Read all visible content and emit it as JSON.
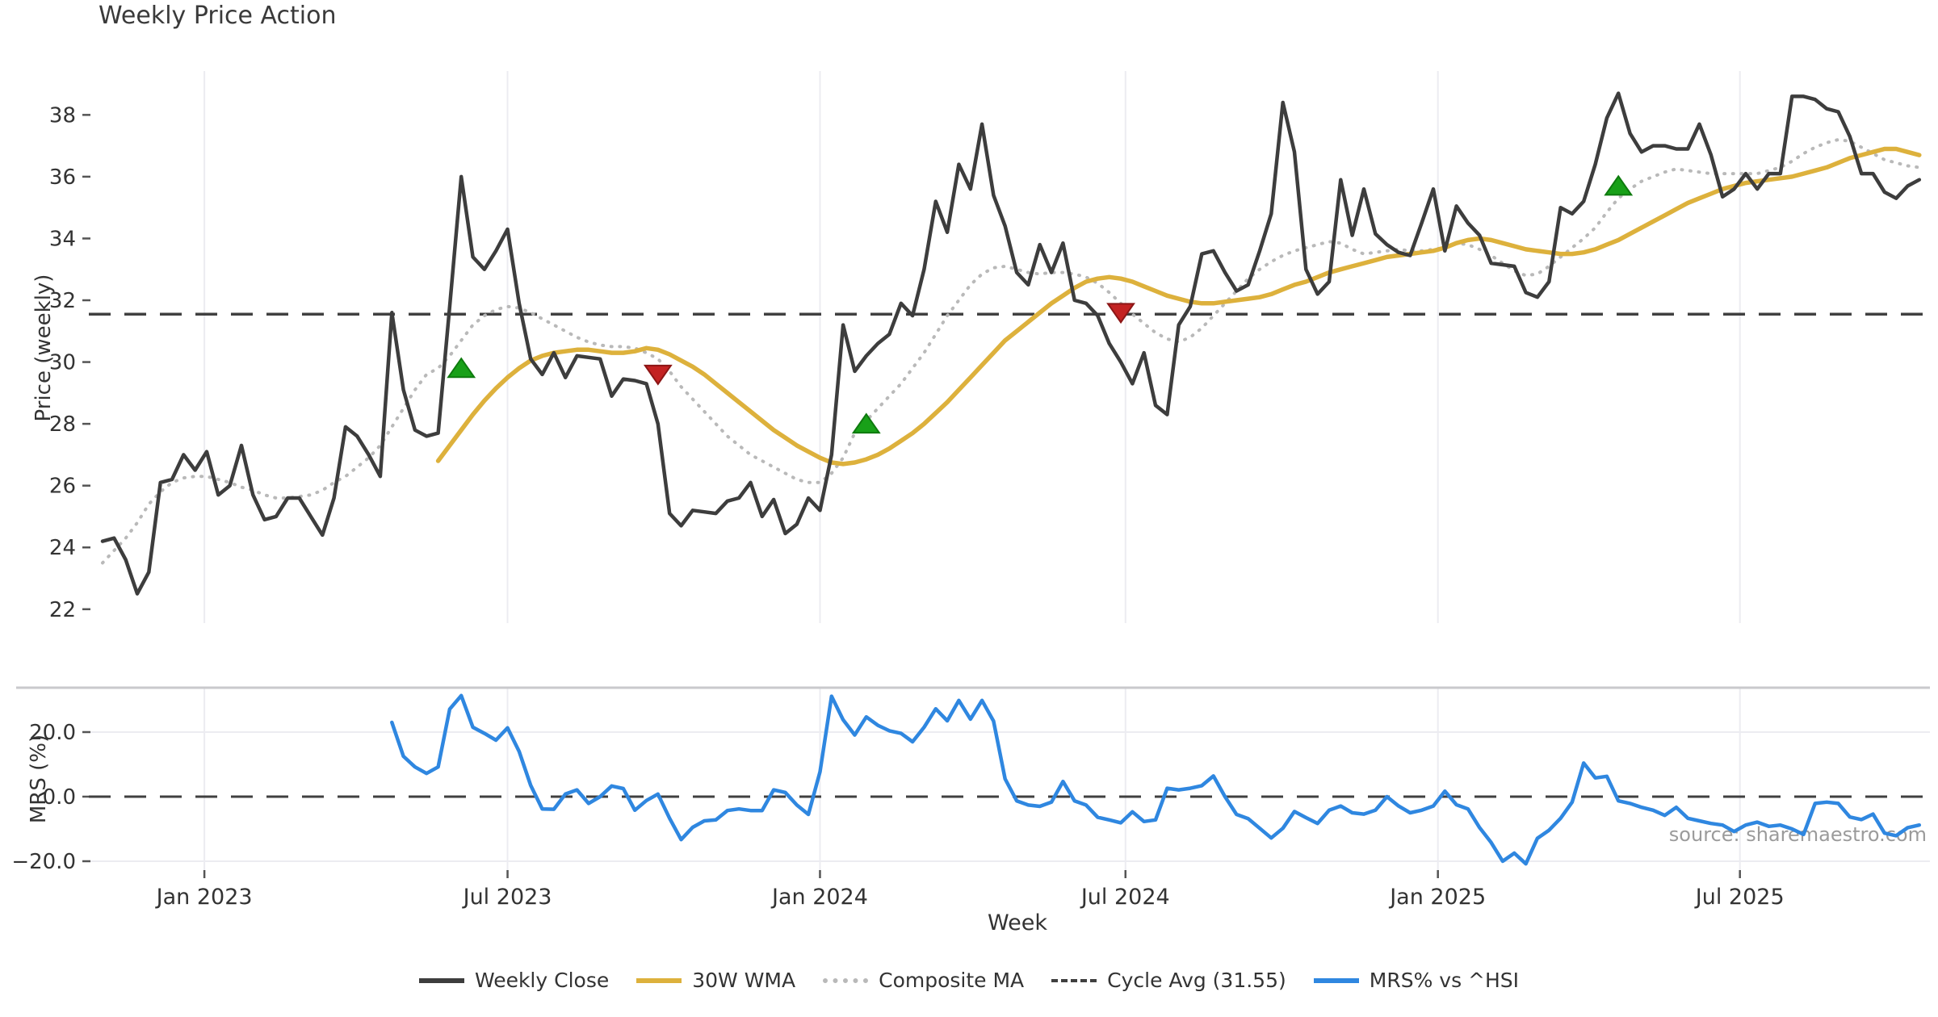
{
  "page": {
    "title": "Weekly Price Action",
    "source_text": "source: sharemaestro.com",
    "background": "#ffffff"
  },
  "chart_data": {
    "type": "line",
    "title": "Weekly Price Action",
    "x_axis": {
      "label": "Week",
      "total_weeks": 158,
      "ticks": [
        {
          "label": "Jan 2023",
          "week": 8.8
        },
        {
          "label": "Jul 2023",
          "week": 35.0
        },
        {
          "label": "Jan 2024",
          "week": 62.0
        },
        {
          "label": "Jul 2024",
          "week": 88.4
        },
        {
          "label": "Jan 2025",
          "week": 115.4
        },
        {
          "label": "Jul 2025",
          "week": 141.5
        }
      ]
    },
    "panels": [
      {
        "id": "price",
        "ylabel": "Price (weekly)",
        "ylim": [
          21.55,
          39.42
        ],
        "yticks": [
          22,
          24,
          26,
          28,
          30,
          32,
          34,
          36,
          38
        ],
        "grid": "vertical-only",
        "series": [
          {
            "name": "Weekly Close",
            "color": "#3d3d3d",
            "style": "solid",
            "width": 4.5,
            "start_week": 0,
            "values": [
              24.2,
              24.3,
              23.6,
              22.5,
              23.2,
              26.1,
              26.2,
              27.0,
              26.5,
              27.1,
              25.7,
              26.0,
              27.3,
              25.7,
              24.9,
              25.0,
              25.6,
              25.6,
              25.0,
              24.4,
              25.6,
              27.9,
              27.6,
              27.0,
              26.3,
              31.6,
              29.1,
              27.8,
              27.6,
              27.7,
              31.8,
              36.0,
              33.4,
              33.0,
              33.6,
              34.3,
              31.9,
              30.1,
              29.6,
              30.3,
              29.5,
              30.2,
              30.15,
              30.1,
              28.9,
              29.45,
              29.4,
              29.3,
              28.0,
              25.1,
              24.7,
              25.2,
              25.15,
              25.1,
              25.5,
              25.6,
              26.1,
              25.0,
              25.55,
              24.45,
              24.75,
              25.6,
              25.2,
              27.0,
              31.2,
              29.7,
              30.2,
              30.6,
              30.9,
              31.9,
              31.5,
              33.0,
              35.2,
              34.2,
              36.4,
              35.6,
              37.7,
              35.4,
              34.4,
              32.9,
              32.5,
              33.8,
              32.9,
              33.85,
              32.0,
              31.9,
              31.5,
              30.6,
              30.0,
              29.3,
              30.3,
              28.6,
              28.3,
              31.2,
              31.8,
              33.5,
              33.6,
              32.9,
              32.3,
              32.5,
              33.6,
              34.8,
              38.4,
              36.8,
              33.0,
              32.2,
              32.6,
              35.9,
              34.1,
              35.6,
              34.15,
              33.8,
              33.55,
              33.45,
              34.5,
              35.6,
              33.6,
              35.05,
              34.5,
              34.1,
              33.2,
              33.15,
              33.1,
              32.25,
              32.1,
              32.6,
              35.0,
              34.8,
              35.2,
              36.4,
              37.9,
              38.7,
              37.4,
              36.8,
              37.0,
              37.0,
              36.9,
              36.9,
              37.7,
              36.7,
              35.35,
              35.6,
              36.1,
              35.6,
              36.1,
              36.1,
              38.6,
              38.6,
              38.5,
              38.2,
              38.1,
              37.3,
              36.1,
              36.1,
              35.5,
              35.3,
              35.7,
              35.9
            ]
          },
          {
            "name": "30W WMA",
            "color": "#ddb13c",
            "style": "solid",
            "width": 5.5,
            "start_week": 29,
            "values": [
              26.8,
              27.3,
              27.8,
              28.3,
              28.75,
              29.15,
              29.5,
              29.8,
              30.05,
              30.2,
              30.3,
              30.35,
              30.4,
              30.4,
              30.35,
              30.3,
              30.3,
              30.35,
              30.45,
              30.4,
              30.25,
              30.05,
              29.85,
              29.6,
              29.3,
              29.0,
              28.7,
              28.4,
              28.1,
              27.8,
              27.55,
              27.3,
              27.1,
              26.9,
              26.75,
              26.7,
              26.75,
              26.85,
              27.0,
              27.2,
              27.45,
              27.7,
              28.0,
              28.35,
              28.7,
              29.1,
              29.5,
              29.9,
              30.3,
              30.7,
              31.0,
              31.3,
              31.6,
              31.9,
              32.15,
              32.4,
              32.6,
              32.7,
              32.75,
              32.7,
              32.6,
              32.45,
              32.3,
              32.15,
              32.05,
              31.95,
              31.9,
              31.9,
              31.95,
              32.0,
              32.05,
              32.1,
              32.2,
              32.35,
              32.5,
              32.6,
              32.75,
              32.9,
              33.0,
              33.1,
              33.2,
              33.3,
              33.4,
              33.45,
              33.5,
              33.55,
              33.6,
              33.7,
              33.85,
              33.95,
              34.0,
              33.95,
              33.85,
              33.75,
              33.65,
              33.6,
              33.55,
              33.5,
              33.5,
              33.55,
              33.65,
              33.8,
              33.95,
              34.15,
              34.35,
              34.55,
              34.75,
              34.95,
              35.15,
              35.3,
              35.45,
              35.6,
              35.7,
              35.8,
              35.85,
              35.9,
              35.95,
              36.0,
              36.1,
              36.2,
              36.3,
              36.45,
              36.6,
              36.7,
              36.8,
              36.9,
              36.9,
              36.8,
              36.7
            ]
          },
          {
            "name": "Composite MA",
            "color": "#b9b9b9",
            "style": "dotted",
            "width": 4,
            "start_week": 0,
            "values": [
              23.5,
              23.9,
              24.3,
              24.8,
              25.4,
              25.8,
              26.1,
              26.25,
              26.3,
              26.3,
              26.2,
              26.1,
              25.95,
              25.85,
              25.7,
              25.6,
              25.6,
              25.65,
              25.7,
              25.85,
              26.1,
              26.3,
              26.6,
              26.9,
              27.3,
              27.9,
              28.5,
              29.1,
              29.6,
              29.8,
              30.2,
              30.7,
              31.2,
              31.5,
              31.7,
              31.8,
              31.75,
              31.6,
              31.4,
              31.2,
              31.0,
              30.8,
              30.65,
              30.55,
              30.5,
              30.5,
              30.45,
              30.3,
              30.1,
              29.7,
              29.2,
              28.8,
              28.4,
              28.0,
              27.6,
              27.3,
              27.0,
              26.8,
              26.6,
              26.4,
              26.2,
              26.1,
              26.1,
              26.4,
              26.9,
              27.7,
              28.1,
              28.5,
              28.9,
              29.3,
              29.8,
              30.3,
              30.9,
              31.5,
              32.0,
              32.5,
              32.85,
              33.05,
              33.1,
              33.0,
              32.9,
              32.85,
              32.9,
              32.9,
              32.85,
              32.75,
              32.55,
              32.25,
              31.9,
              31.55,
              31.25,
              30.95,
              30.75,
              30.65,
              30.8,
              31.1,
              31.5,
              31.9,
              32.3,
              32.7,
              33.0,
              33.25,
              33.45,
              33.6,
              33.7,
              33.8,
              33.9,
              33.85,
              33.65,
              33.5,
              33.55,
              33.6,
              33.65,
              33.6,
              33.6,
              33.65,
              33.7,
              33.85,
              33.8,
              33.65,
              33.45,
              33.2,
              32.95,
              32.8,
              32.85,
              33.1,
              33.4,
              33.7,
              34.0,
              34.35,
              34.85,
              35.3,
              35.6,
              35.85,
              36.0,
              36.15,
              36.25,
              36.2,
              36.15,
              36.1,
              36.1,
              36.1,
              36.1,
              36.1,
              36.2,
              36.3,
              36.5,
              36.75,
              36.95,
              37.1,
              37.2,
              37.15,
              36.95,
              36.75,
              36.55,
              36.45,
              36.35,
              36.3
            ]
          },
          {
            "name": "Cycle Avg (31.55)",
            "color": "#404040",
            "style": "dashed",
            "width": 3.5,
            "const_value": 31.55
          }
        ],
        "markers": {
          "buy_color": "#18a018",
          "buy_edge": "#0e7a0e",
          "sell_color": "#c32222",
          "sell_edge": "#8c1616",
          "buy": [
            {
              "week": 31,
              "price": 29.8
            },
            {
              "week": 66,
              "price": 28.0
            },
            {
              "week": 131,
              "price": 35.7
            }
          ],
          "sell": [
            {
              "week": 48,
              "price": 29.6
            },
            {
              "week": 88,
              "price": 31.6
            }
          ]
        }
      },
      {
        "id": "mrs",
        "ylabel": "MRS (%)",
        "ylim": [
          -22.75,
          33.75
        ],
        "yticks": [
          {
            "label": "20.0",
            "value": 20
          },
          {
            "label": "0.0",
            "value": 0
          },
          {
            "label": "−20.0",
            "value": -20
          }
        ],
        "hgrid_values": [
          20,
          -20
        ],
        "top_spine": true,
        "zero_dashed": true,
        "series": [
          {
            "name": "MRS% vs ^HSI",
            "color": "#2f87e0",
            "style": "solid",
            "width": 4.5,
            "start_week": 25,
            "values": [
              23,
              12.5,
              9.2,
              7.2,
              9.2,
              27.1,
              31.3,
              21.5,
              19.6,
              17.5,
              21.3,
              14,
              3.5,
              -3.8,
              -3.9,
              0.8,
              2.1,
              -2.1,
              0,
              3.3,
              2.5,
              -4.2,
              -1.2,
              0.8,
              -6.7,
              -13.3,
              -9.5,
              -7.5,
              -7.2,
              -4.3,
              -3.8,
              -4.3,
              -4.3,
              2.1,
              1.3,
              -2.6,
              -5.5,
              7.7,
              31.1,
              23.8,
              19.1,
              24.7,
              22.1,
              20.4,
              19.6,
              17,
              21.5,
              27.2,
              23.5,
              29.8,
              24,
              29.8,
              23.4,
              5.5,
              -1.3,
              -2.6,
              -3.0,
              -1.7,
              4.7,
              -1.3,
              -2.6,
              -6.4,
              -7.2,
              -8.1,
              -4.7,
              -7.7,
              -7.2,
              2.6,
              2.1,
              2.6,
              3.4,
              6.4,
              0,
              -5.5,
              -6.8,
              -9.8,
              -12.8,
              -9.8,
              -4.6,
              -6.5,
              -8.3,
              -4.2,
              -2.9,
              -5.0,
              -5.4,
              -4.2,
              0,
              -2.9,
              -5.0,
              -4.2,
              -2.9,
              1.7,
              -2.5,
              -3.8,
              -9.6,
              -14.2,
              -20.0,
              -17.5,
              -20.8,
              -12.9,
              -10.4,
              -6.7,
              -1.7,
              10.4,
              5.8,
              6.3,
              -1.3,
              -2.1,
              -3.3,
              -4.2,
              -5.8,
              -3.3,
              -6.7,
              -7.5,
              -8.3,
              -8.8,
              -10.8,
              -8.8,
              -7.9,
              -9.2,
              -8.8,
              -10.0,
              -11.7,
              -2.1,
              -1.7,
              -2.1,
              -6.3,
              -7.1,
              -5.4,
              -11.3,
              -12.1,
              -9.6,
              -8.8
            ]
          }
        ]
      }
    ],
    "colors": {
      "grid": "#ececf1",
      "spine": "#c9c9cc",
      "tick_text": "#333333"
    }
  },
  "legend": [
    {
      "label": "Weekly Close",
      "color": "#3d3d3d",
      "style": "solid"
    },
    {
      "label": "30W WMA",
      "color": "#ddb13c",
      "style": "solid"
    },
    {
      "label": "Composite MA",
      "color": "#b9b9b9",
      "style": "dotted"
    },
    {
      "label": "Cycle Avg (31.55)",
      "color": "#404040",
      "style": "dashed"
    },
    {
      "label": "MRS% vs ^HSI",
      "color": "#2f87e0",
      "style": "solid"
    }
  ]
}
